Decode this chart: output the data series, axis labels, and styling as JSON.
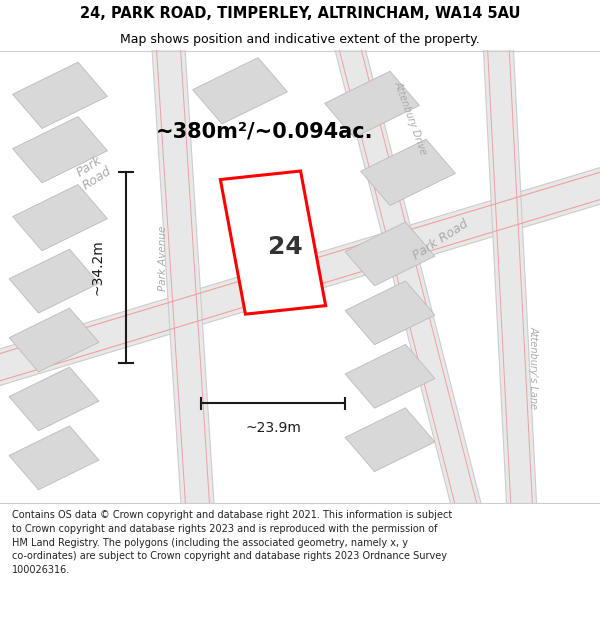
{
  "title": "24, PARK ROAD, TIMPERLEY, ALTRINCHAM, WA14 5AU",
  "subtitle": "Map shows position and indicative extent of the property.",
  "footer_lines": [
    "Contains OS data © Crown copyright and database right 2021. This information is subject",
    "to Crown copyright and database rights 2023 and is reproduced with the permission of",
    "HM Land Registry. The polygons (including the associated geometry, namely x, y",
    "co-ordinates) are subject to Crown copyright and database rights 2023 Ordnance Survey",
    "100026316."
  ],
  "area_label": "~380m²/~0.094ac.",
  "width_label": "~23.9m",
  "height_label": "~34.2m",
  "number_label": "24",
  "map_bg": "#f2f2f2",
  "block_color": "#d8d8d8",
  "block_edge": "#bbbbbb",
  "road_color": "#e8e8e8",
  "road_edge": "#cccccc",
  "red_line": "#ff0000",
  "red_road_line": "#f0a0a0",
  "dim_color": "#1a1a1a",
  "label_color": "#aaaaaa",
  "title_fontsize": 10.5,
  "subtitle_fontsize": 9,
  "footer_fontsize": 7,
  "area_fontsize": 15,
  "number_fontsize": 18,
  "dim_fontsize": 10,
  "road_label_fontsize": 9
}
